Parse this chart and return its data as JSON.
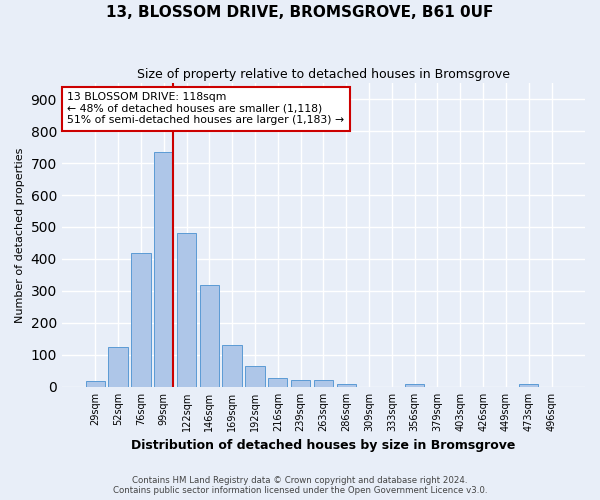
{
  "title_line1": "13, BLOSSOM DRIVE, BROMSGROVE, B61 0UF",
  "title_line2": "Size of property relative to detached houses in Bromsgrove",
  "xlabel": "Distribution of detached houses by size in Bromsgrove",
  "ylabel": "Number of detached properties",
  "bar_labels": [
    "29sqm",
    "52sqm",
    "76sqm",
    "99sqm",
    "122sqm",
    "146sqm",
    "169sqm",
    "192sqm",
    "216sqm",
    "239sqm",
    "263sqm",
    "286sqm",
    "309sqm",
    "333sqm",
    "356sqm",
    "379sqm",
    "403sqm",
    "426sqm",
    "449sqm",
    "473sqm",
    "496sqm"
  ],
  "bar_values": [
    20,
    125,
    420,
    735,
    480,
    320,
    130,
    65,
    28,
    22,
    22,
    8,
    0,
    0,
    8,
    0,
    0,
    0,
    0,
    10,
    0
  ],
  "bar_color": "#aec6e8",
  "bar_edge_color": "#5b9bd5",
  "background_color": "#e8eef8",
  "grid_color": "#ffffff",
  "vline_x_pos": 3.42,
  "vline_color": "#cc0000",
  "annotation_title": "13 BLOSSOM DRIVE: 118sqm",
  "annotation_line1": "← 48% of detached houses are smaller (1,118)",
  "annotation_line2": "51% of semi-detached houses are larger (1,183) →",
  "annotation_box_color": "white",
  "annotation_box_edge": "#cc0000",
  "footer_line1": "Contains HM Land Registry data © Crown copyright and database right 2024.",
  "footer_line2": "Contains public sector information licensed under the Open Government Licence v3.0.",
  "ylim": [
    0,
    950
  ],
  "yticks": [
    0,
    100,
    200,
    300,
    400,
    500,
    600,
    700,
    800,
    900
  ]
}
